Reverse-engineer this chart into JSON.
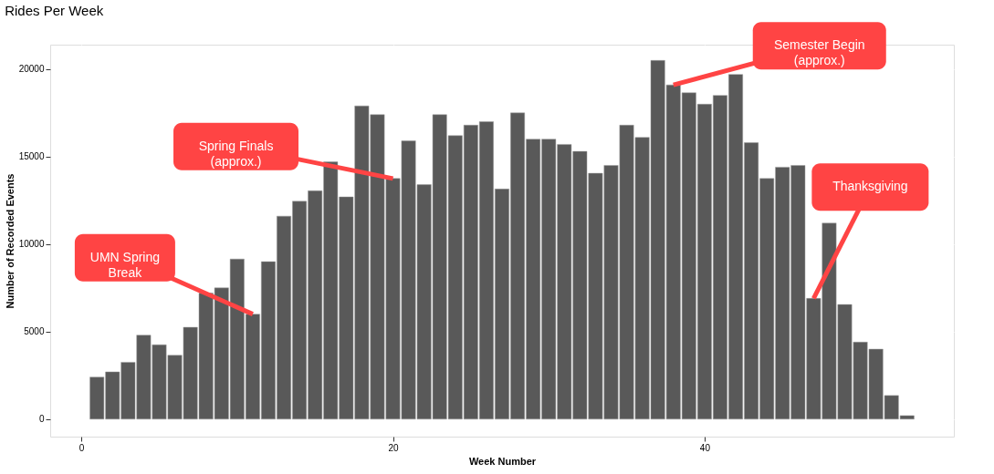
{
  "chart_data": {
    "type": "bar",
    "title": "Rides Per Week",
    "xlabel": "Week Number",
    "ylabel": "Number of Recorded Events",
    "x": [
      1,
      2,
      3,
      4,
      5,
      6,
      7,
      8,
      9,
      10,
      11,
      12,
      13,
      14,
      15,
      16,
      17,
      18,
      19,
      20,
      21,
      22,
      23,
      24,
      25,
      26,
      27,
      28,
      29,
      30,
      31,
      32,
      33,
      34,
      35,
      36,
      37,
      38,
      39,
      40,
      41,
      42,
      43,
      44,
      45,
      46,
      47,
      48,
      49,
      50,
      51,
      52,
      53
    ],
    "values": [
      2400,
      2700,
      3250,
      4800,
      4250,
      3650,
      5250,
      7200,
      7500,
      9150,
      6000,
      9000,
      11600,
      12450,
      13050,
      14700,
      12700,
      17900,
      17400,
      13750,
      15900,
      13400,
      17400,
      16200,
      16800,
      17000,
      13150,
      17500,
      16000,
      16000,
      15700,
      15300,
      14050,
      14500,
      16800,
      16100,
      20500,
      19100,
      18650,
      18000,
      18500,
      19700,
      15800,
      13750,
      14400,
      14500,
      6900,
      11200,
      6550,
      4400,
      4000,
      1350,
      200
    ],
    "color": "#595959",
    "xlim": [
      -2,
      56
    ],
    "xticks": [
      0,
      20,
      40
    ],
    "ylim": [
      -1000,
      21400
    ],
    "yticks": [
      0,
      5000,
      10000,
      15000,
      20000
    ],
    "grid": true,
    "annotations": [
      {
        "text": "UMN Spring\nBreak",
        "x": 11,
        "y": 6000
      },
      {
        "text": "Spring Finals\n(approx.)",
        "x": 20,
        "y": 13750
      },
      {
        "text": "Semester Begin\n(approx.)",
        "x": 38,
        "y": 19100
      },
      {
        "text": "Thanksgiving",
        "x": 47,
        "y": 6900
      }
    ]
  }
}
